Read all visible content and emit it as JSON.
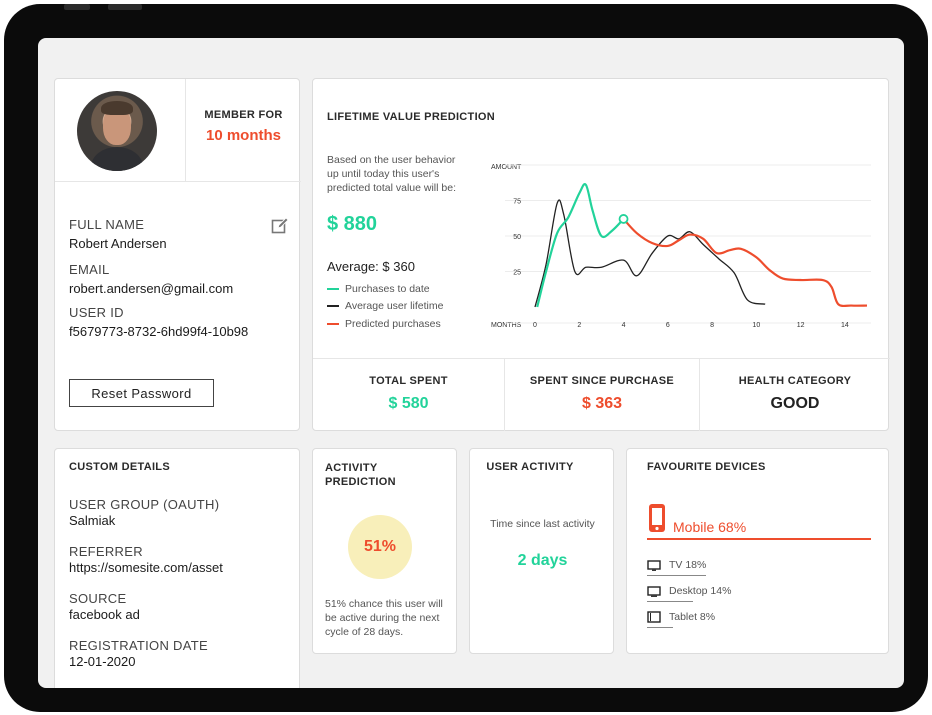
{
  "profile": {
    "member_for_label": "MEMBER FOR",
    "member_for_value": "10 months",
    "full_name_label": "FULL NAME",
    "full_name": "Robert Andersen",
    "email_label": "EMAIL",
    "email": "robert.andersen@gmail.com",
    "user_id_label": "USER ID",
    "user_id": "f5679773-8732-6hd99f4-10b98",
    "reset_password": "Reset Password"
  },
  "lifetime": {
    "title": "LIFETIME VALUE PREDICTION",
    "description": "Based on the user behavior up until today this user's predicted total value will be:",
    "predicted_value": "$ 880",
    "average": "Average: $ 360",
    "legend": [
      {
        "label": "Purchases to date",
        "color": "#22d39a"
      },
      {
        "label": "Average user lifetime",
        "color": "#222222"
      },
      {
        "label": "Predicted purchases",
        "color": "#ee4d2d"
      }
    ]
  },
  "stats": {
    "total_spent_label": "TOTAL SPENT",
    "total_spent": "$ 580",
    "since_purchase_label": "SPENT SINCE PURCHASE",
    "since_purchase": "$ 363",
    "health_label": "HEALTH CATEGORY",
    "health": "GOOD"
  },
  "chart_data": {
    "type": "line",
    "title": "",
    "xlabel": "MONTHS",
    "ylabel": "AMOUNT",
    "xlim": [
      0,
      15
    ],
    "ylim": [
      0,
      100
    ],
    "x_ticks": [
      0,
      2,
      4,
      6,
      8,
      10,
      12,
      14
    ],
    "y_ticks": [
      25,
      50,
      75
    ],
    "grid": true,
    "series": [
      {
        "name": "Purchases to date",
        "color": "#22d39a",
        "points": [
          [
            0.1,
            0
          ],
          [
            0.5,
            25
          ],
          [
            1,
            52
          ],
          [
            1.5,
            63
          ],
          [
            2,
            80
          ],
          [
            2.3,
            86
          ],
          [
            2.6,
            68
          ],
          [
            3,
            50
          ],
          [
            3.5,
            54
          ],
          [
            4,
            62
          ]
        ]
      },
      {
        "name": "Average user lifetime",
        "color": "#222222",
        "points": [
          [
            0,
            0
          ],
          [
            0.5,
            30
          ],
          [
            1,
            73
          ],
          [
            1.3,
            65
          ],
          [
            1.8,
            25
          ],
          [
            2.3,
            28
          ],
          [
            3,
            28
          ],
          [
            4,
            33
          ],
          [
            4.6,
            22
          ],
          [
            5.3,
            38
          ],
          [
            6,
            50
          ],
          [
            6.5,
            48
          ],
          [
            7,
            53
          ],
          [
            7.6,
            44
          ],
          [
            8.3,
            34
          ],
          [
            9,
            24
          ],
          [
            9.6,
            5
          ],
          [
            10.4,
            2
          ]
        ]
      },
      {
        "name": "Predicted purchases",
        "color": "#ee4d2d",
        "points": [
          [
            4,
            62
          ],
          [
            4.6,
            52
          ],
          [
            5.3,
            45
          ],
          [
            6,
            43
          ],
          [
            6.5,
            47
          ],
          [
            7,
            51
          ],
          [
            7.6,
            48
          ],
          [
            8.2,
            38
          ],
          [
            8.8,
            40
          ],
          [
            9.3,
            41
          ],
          [
            10,
            35
          ],
          [
            10.6,
            26
          ],
          [
            11.2,
            20
          ],
          [
            12,
            19
          ],
          [
            13,
            19
          ],
          [
            13.4,
            14
          ],
          [
            13.7,
            2
          ],
          [
            14.3,
            1
          ],
          [
            15,
            1
          ]
        ]
      }
    ]
  },
  "custom": {
    "title": "CUSTOM DETAILS",
    "group_label": "USER GROUP (OAUTH)",
    "group": "Salmiak",
    "referrer_label": "REFERRER",
    "referrer": "https://somesite.com/asset",
    "source_label": "SOURCE",
    "source": "facebook ad",
    "reg_label": "REGISTRATION DATE",
    "reg": "12-01-2020"
  },
  "activity": {
    "title": "ACTIVITY PREDICTION",
    "percent": "51%",
    "description": "51% chance this user will be active during the next cycle of 28 days."
  },
  "user_activity": {
    "title": "USER ACTIVITY",
    "label": "Time since last activity",
    "value": "2 days"
  },
  "devices": {
    "title": "FAVOURITE DEVICES",
    "mobile": "Mobile 68%",
    "mobile_share": 0.68,
    "tv": "TV 18%",
    "tv_share": 0.18,
    "desktop": "Desktop 14%",
    "desktop_share": 0.14,
    "tablet": "Tablet 8%",
    "tablet_share": 0.08
  }
}
